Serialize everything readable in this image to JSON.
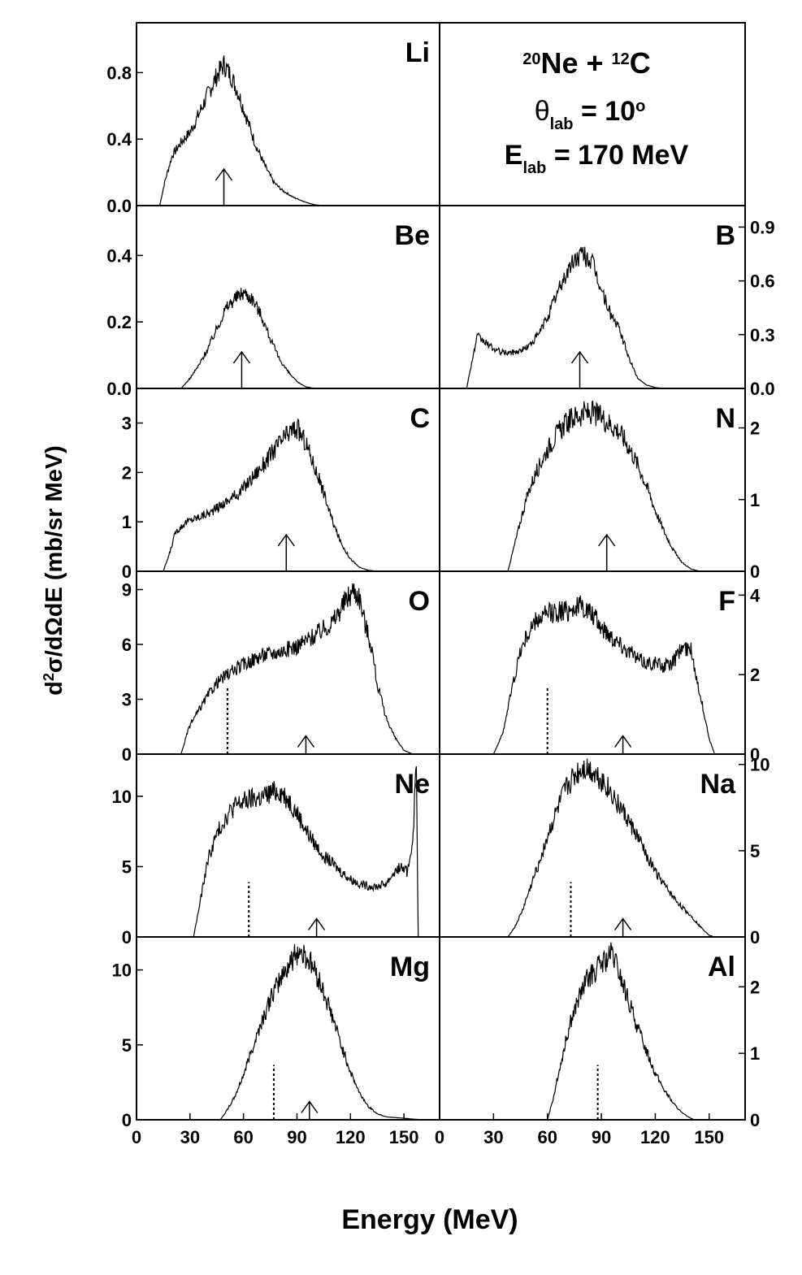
{
  "xlabel": "Energy (MeV)",
  "ylabel": "d²σ/dΩdE (mb/sr MeV)",
  "reaction": {
    "line1_base": "Ne + ",
    "line1_sup1": "20",
    "line1_sup2": "12",
    "line1_end": "C",
    "line2_sym": "θ",
    "line2_sub": "lab",
    "line2_rest": " = 10",
    "line2_sup": "o",
    "line3_sym": "E",
    "line3_sub": "lab",
    "line3_rest": " = 170 MeV"
  },
  "x_ticks": [
    "0",
    "30",
    "60",
    "90",
    "120",
    "150"
  ],
  "chart_data": [
    {
      "type": "line",
      "element": "Li",
      "ylim": [
        0,
        1.1
      ],
      "yticks": [
        "0.0",
        "0.4",
        "0.8"
      ],
      "ytick_values": [
        0,
        0.4,
        0.8
      ],
      "arrow_x": 49,
      "dotted_x": null,
      "x": [
        13,
        16,
        20,
        25,
        30,
        35,
        40,
        45,
        49,
        53,
        57,
        62,
        67,
        72,
        77,
        82,
        88,
        95,
        100,
        105
      ],
      "y": [
        0,
        0.15,
        0.3,
        0.38,
        0.44,
        0.55,
        0.67,
        0.78,
        0.85,
        0.78,
        0.68,
        0.52,
        0.36,
        0.24,
        0.14,
        0.09,
        0.05,
        0.02,
        0.005,
        0
      ]
    },
    {
      "type": "text-panel"
    },
    {
      "type": "line",
      "element": "Be",
      "ylim": [
        0,
        0.55
      ],
      "yticks": [
        "0.0",
        "0.2",
        "0.4"
      ],
      "ytick_values": [
        0,
        0.2,
        0.4
      ],
      "arrow_x": 59,
      "dotted_x": null,
      "x": [
        25,
        30,
        35,
        40,
        45,
        50,
        55,
        60,
        65,
        70,
        75,
        80,
        85,
        90,
        95,
        100
      ],
      "y": [
        0,
        0.03,
        0.07,
        0.12,
        0.18,
        0.24,
        0.27,
        0.29,
        0.27,
        0.22,
        0.15,
        0.09,
        0.05,
        0.02,
        0.005,
        0
      ]
    },
    {
      "type": "line",
      "element": "B",
      "ylim": [
        0,
        1.02
      ],
      "yticks": [
        "0.0",
        "0.3",
        "0.6",
        "0.9"
      ],
      "ytick_values": [
        0,
        0.3,
        0.6,
        0.9
      ],
      "arrow_x": 78,
      "dotted_x": null,
      "x": [
        15,
        18,
        21,
        25,
        30,
        35,
        40,
        45,
        50,
        55,
        60,
        65,
        70,
        75,
        80,
        85,
        90,
        95,
        100,
        105,
        110,
        115,
        120,
        125
      ],
      "y": [
        0,
        0.15,
        0.29,
        0.26,
        0.22,
        0.2,
        0.2,
        0.21,
        0.24,
        0.3,
        0.4,
        0.52,
        0.63,
        0.72,
        0.75,
        0.7,
        0.55,
        0.42,
        0.33,
        0.18,
        0.06,
        0.02,
        0.005,
        0
      ]
    },
    {
      "type": "line",
      "element": "C",
      "ylim": [
        0,
        3.7
      ],
      "yticks": [
        "0",
        "1",
        "2",
        "3"
      ],
      "ytick_values": [
        0,
        1,
        2,
        3
      ],
      "arrow_x": 84,
      "dotted_x": null,
      "x": [
        15,
        18,
        22,
        28,
        35,
        42,
        50,
        58,
        65,
        72,
        78,
        83,
        87,
        90,
        95,
        100,
        105,
        110,
        115,
        120,
        125,
        130,
        135
      ],
      "y": [
        0,
        0.3,
        0.8,
        1.0,
        1.1,
        1.2,
        1.4,
        1.6,
        1.9,
        2.2,
        2.5,
        2.7,
        2.85,
        2.9,
        2.6,
        2.1,
        1.6,
        1.0,
        0.55,
        0.25,
        0.08,
        0.02,
        0
      ]
    },
    {
      "type": "line",
      "element": "N",
      "ylim": [
        0,
        2.55
      ],
      "yticks": [
        "0",
        "1",
        "2"
      ],
      "ytick_values": [
        0,
        1,
        2
      ],
      "arrow_x": 93,
      "dotted_x": null,
      "x": [
        38,
        42,
        46,
        50,
        55,
        60,
        65,
        70,
        75,
        80,
        85,
        90,
        95,
        100,
        105,
        110,
        115,
        120,
        125,
        130,
        135,
        140,
        145
      ],
      "y": [
        0,
        0.4,
        0.8,
        1.15,
        1.45,
        1.7,
        1.9,
        2.05,
        2.15,
        2.2,
        2.2,
        2.15,
        2.05,
        1.95,
        1.75,
        1.5,
        1.2,
        0.85,
        0.55,
        0.3,
        0.12,
        0.03,
        0
      ]
    },
    {
      "type": "line",
      "element": "O",
      "ylim": [
        0,
        10
      ],
      "yticks": [
        "0",
        "3",
        "6",
        "9"
      ],
      "ytick_values": [
        0,
        3,
        6,
        9
      ],
      "arrow_x": 95,
      "dotted_x": 51,
      "x": [
        25,
        28,
        30,
        35,
        40,
        45,
        50,
        60,
        70,
        80,
        90,
        100,
        110,
        118,
        122,
        125,
        128,
        132,
        135,
        140,
        145,
        150,
        155
      ],
      "y": [
        0,
        1.0,
        1.6,
        2.4,
        3.2,
        3.9,
        4.3,
        4.9,
        5.4,
        5.6,
        5.9,
        6.5,
        7.2,
        8.5,
        9.0,
        8.6,
        7.2,
        5.8,
        3.8,
        2.0,
        0.9,
        0.2,
        0
      ]
    },
    {
      "type": "line",
      "element": "F",
      "ylim": [
        0,
        4.6
      ],
      "yticks": [
        "0",
        "2",
        "4"
      ],
      "ytick_values": [
        0,
        2,
        4
      ],
      "arrow_x": 102,
      "dotted_x": 60,
      "x": [
        30,
        35,
        40,
        45,
        50,
        55,
        60,
        65,
        70,
        75,
        80,
        85,
        90,
        95,
        100,
        105,
        110,
        115,
        120,
        125,
        130,
        135,
        140,
        145,
        150,
        153
      ],
      "y": [
        0,
        0.5,
        1.6,
        2.6,
        3.1,
        3.4,
        3.5,
        3.6,
        3.6,
        3.7,
        3.7,
        3.5,
        3.2,
        3.0,
        2.8,
        2.6,
        2.4,
        2.3,
        2.3,
        2.2,
        2.3,
        2.7,
        2.6,
        1.5,
        0.4,
        0
      ]
    },
    {
      "type": "line",
      "element": "Ne",
      "ylim": [
        0,
        13
      ],
      "yticks": [
        "0",
        "5",
        "10"
      ],
      "ytick_values": [
        0,
        5,
        10
      ],
      "arrow_x": 101,
      "dotted_x": 63,
      "x": [
        32,
        35,
        40,
        45,
        50,
        55,
        60,
        65,
        70,
        75,
        80,
        85,
        90,
        95,
        100,
        105,
        110,
        115,
        120,
        125,
        130,
        135,
        140,
        144,
        148,
        152,
        155,
        157,
        158
      ],
      "y": [
        0,
        2.0,
        5.5,
        7.3,
        8.5,
        9.3,
        9.6,
        9.8,
        9.9,
        10.2,
        10.4,
        9.8,
        8.8,
        7.6,
        6.6,
        5.8,
        5.2,
        4.6,
        4.1,
        3.8,
        3.6,
        3.6,
        3.8,
        4.5,
        5.0,
        4.6,
        7.0,
        12.5,
        0
      ]
    },
    {
      "type": "line",
      "element": "Na",
      "ylim": [
        0,
        10.6
      ],
      "yticks": [
        "0",
        "5",
        "10"
      ],
      "ytick_values": [
        0,
        5,
        10
      ],
      "arrow_x": 102,
      "dotted_x": 73,
      "x": [
        38,
        42,
        46,
        50,
        55,
        60,
        65,
        70,
        75,
        80,
        85,
        90,
        95,
        100,
        105,
        110,
        115,
        120,
        125,
        130,
        135,
        140,
        145,
        150,
        153
      ],
      "y": [
        0,
        0.6,
        1.5,
        2.7,
        4.2,
        5.8,
        7.2,
        8.5,
        9.3,
        9.8,
        9.6,
        9.1,
        8.4,
        7.6,
        6.7,
        5.8,
        4.8,
        3.8,
        3.0,
        2.3,
        1.7,
        1.2,
        0.6,
        0.1,
        0
      ]
    },
    {
      "type": "line",
      "element": "Mg",
      "ylim": [
        0,
        12.2
      ],
      "yticks": [
        "0",
        "5",
        "10"
      ],
      "ytick_values": [
        0,
        5,
        10
      ],
      "arrow_x": 97,
      "dotted_x": 77,
      "x": [
        47,
        50,
        55,
        60,
        65,
        70,
        75,
        80,
        85,
        88,
        91,
        95,
        100,
        105,
        110,
        115,
        120,
        125,
        130,
        135,
        140,
        145,
        150,
        155,
        160
      ],
      "y": [
        0,
        0.5,
        1.5,
        3.0,
        4.8,
        6.5,
        8.0,
        9.3,
        10.3,
        10.8,
        11.3,
        10.9,
        10.0,
        8.5,
        6.8,
        4.9,
        3.2,
        1.8,
        0.9,
        0.4,
        0.2,
        0.15,
        0.1,
        0.05,
        0
      ]
    },
    {
      "type": "line",
      "element": "Al",
      "ylim": [
        0,
        2.75
      ],
      "yticks": [
        "0",
        "1",
        "2"
      ],
      "ytick_values": [
        0,
        1,
        2
      ],
      "arrow_x": null,
      "dotted_x": 88,
      "x": [
        60,
        63,
        67,
        72,
        77,
        82,
        87,
        90,
        93,
        96,
        100,
        105,
        110,
        115,
        120,
        125,
        130,
        135,
        140,
        142
      ],
      "y": [
        0,
        0.3,
        0.8,
        1.4,
        1.8,
        2.1,
        2.25,
        2.35,
        2.4,
        2.5,
        2.2,
        1.8,
        1.4,
        1.05,
        0.7,
        0.45,
        0.25,
        0.1,
        0.02,
        0
      ]
    }
  ]
}
